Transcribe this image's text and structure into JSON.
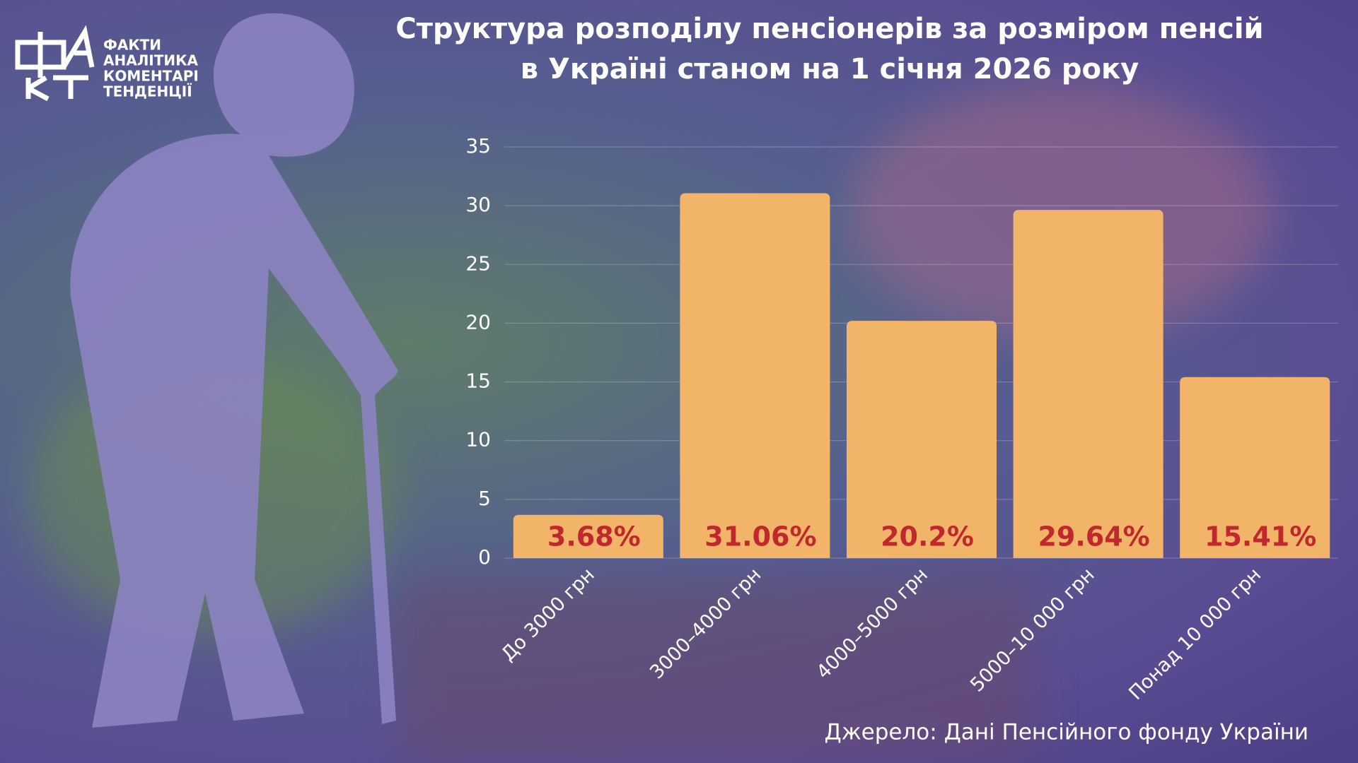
{
  "logo": {
    "lines": [
      "ФАКТИ",
      "АНАЛІТИКА",
      "КОМЕНТАРІ",
      "ТЕНДЕНЦІЇ"
    ]
  },
  "chart_data": {
    "type": "bar",
    "title": [
      "Структура розподілу пенсіонерів за розміром пенсій",
      "в Україні станом на 1 січня 2026 року"
    ],
    "categories": [
      "До 3000 грн",
      "3000–4000 грн",
      "4000–5000 грн",
      "5000–10 000 грн",
      "Понад 10 000 грн"
    ],
    "values": [
      3.68,
      31.06,
      20.2,
      29.64,
      15.41
    ],
    "value_labels": [
      "3.68%",
      "31.06%",
      "20.2%",
      "29.64%",
      "15.41%"
    ],
    "color": "#f2b468",
    "label_color": "#c0282d",
    "ylim": [
      0,
      35
    ],
    "yticks": [
      0,
      5,
      10,
      15,
      20,
      25,
      30,
      35
    ],
    "grid": true,
    "source": "Джерело: Дані Пенсійного фонду України"
  }
}
